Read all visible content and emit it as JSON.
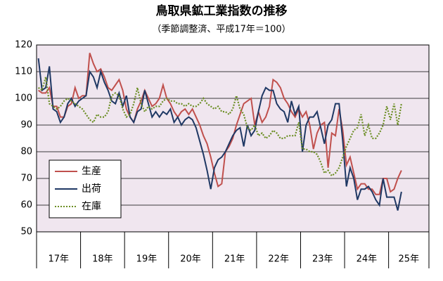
{
  "chart_data": {
    "type": "line",
    "title": "鳥取県鉱工業指数の推移",
    "subtitle": "（季節調整済、平成17年＝100）",
    "year_labels": [
      "17年",
      "18年",
      "19年",
      "20年",
      "21年",
      "22年",
      "23年",
      "24年",
      "25年"
    ],
    "ylim": [
      50,
      120
    ],
    "yticks": [
      50,
      60,
      70,
      80,
      90,
      100,
      110,
      120
    ],
    "grid": true,
    "legend": "lower left",
    "plot_color": "#f0e6ef",
    "series": [
      {
        "name": "生産",
        "color": "#c0504d",
        "dash": false,
        "values": [
          103,
          102,
          102,
          104,
          97,
          97,
          93,
          93,
          97,
          98,
          104,
          100,
          101,
          101,
          117,
          113,
          110,
          111,
          108,
          104,
          103,
          105,
          107,
          103,
          96,
          93,
          91,
          96,
          99,
          103,
          100,
          97,
          98,
          100,
          105,
          100,
          98,
          95,
          93,
          95,
          96,
          94,
          96,
          93,
          90,
          86,
          83,
          78,
          72,
          67,
          68,
          80,
          82,
          85,
          90,
          94,
          98,
          99,
          100,
          90,
          95,
          91,
          93,
          97,
          107,
          106,
          104,
          100,
          98,
          95,
          93,
          96,
          93,
          95,
          90,
          81,
          87,
          90,
          91,
          74,
          87,
          86,
          96,
          88,
          75,
          78,
          72,
          66,
          68,
          68,
          66,
          66,
          64,
          64,
          70,
          70,
          65,
          66,
          70,
          73
        ]
      },
      {
        "name": "出荷",
        "color": "#1f3864",
        "dash": false,
        "values": [
          115,
          103,
          104,
          112,
          96,
          95,
          91,
          93,
          98,
          100,
          97,
          99,
          100,
          101,
          110,
          108,
          104,
          110,
          106,
          103,
          99,
          98,
          102,
          97,
          101,
          93,
          91,
          95,
          96,
          103,
          98,
          93,
          95,
          93,
          95,
          94,
          96,
          91,
          93,
          90,
          92,
          93,
          92,
          89,
          84,
          79,
          73,
          66,
          74,
          77,
          78,
          80,
          83,
          86,
          88,
          89,
          82,
          90,
          86,
          88,
          95,
          101,
          104,
          103,
          103,
          98,
          96,
          95,
          91,
          99,
          94,
          97,
          80,
          90,
          93,
          93,
          95,
          89,
          83,
          90,
          92,
          98,
          98,
          84,
          67,
          74,
          70,
          62,
          66,
          66,
          67,
          65,
          62,
          60,
          70,
          63,
          63,
          63,
          58,
          65
        ]
      },
      {
        "name": "在庫",
        "color": "#6b8e23",
        "dash": true,
        "values": [
          104,
          103,
          108,
          98,
          97,
          96,
          97,
          99,
          100,
          99,
          98,
          97,
          96,
          94,
          92,
          91,
          94,
          93,
          93,
          95,
          101,
          102,
          101,
          96,
          93,
          94,
          98,
          104,
          98,
          95,
          97,
          96,
          97,
          97,
          99,
          100,
          99,
          99,
          98,
          98,
          97,
          98,
          97,
          97,
          98,
          100,
          98,
          97,
          96,
          97,
          95,
          95,
          94,
          96,
          101,
          96,
          94,
          89,
          88,
          90,
          86,
          87,
          85,
          86,
          88,
          87,
          85,
          85,
          86,
          86,
          86,
          91,
          81,
          81,
          80,
          80,
          79,
          76,
          72,
          73,
          71,
          72,
          74,
          78,
          82,
          85,
          88,
          89,
          94,
          86,
          90,
          85,
          85,
          87,
          90,
          97,
          92,
          98,
          90,
          98
        ]
      }
    ]
  }
}
